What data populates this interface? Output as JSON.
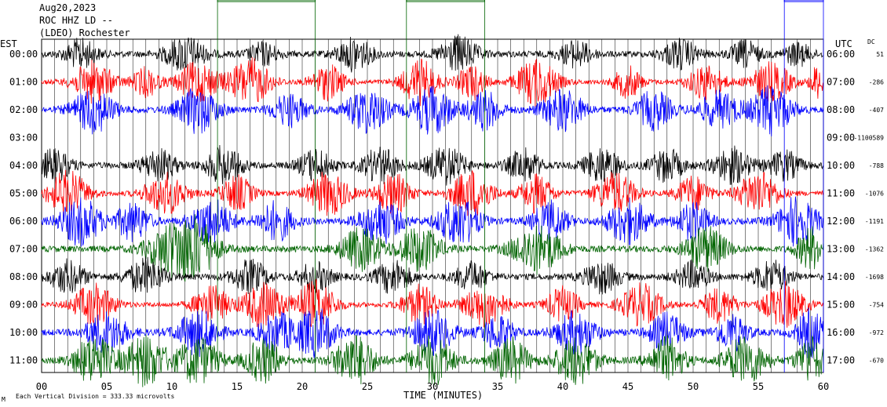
{
  "header": {
    "date": "Aug20,2023",
    "station": "ROC HHZ LD --",
    "network": "(LDEO) Rochester"
  },
  "chart_data": {
    "type": "line",
    "subtype": "helicorder",
    "xlabel": "TIME (MINUTES)",
    "x_ticks": [
      "00",
      "05",
      "10",
      "15",
      "20",
      "25",
      "30",
      "35",
      "40",
      "45",
      "50",
      "55",
      "60"
    ],
    "xlim": [
      0,
      60
    ],
    "left_axis_title": "EST",
    "right_axis_title": "UTC",
    "dc_label": "DC",
    "scale_note": "Each Vertical Division = 333.33 microvolts",
    "corner_mark": "M",
    "grid": true,
    "trace_colors": [
      "#000000",
      "#ff0000",
      "#0000ff",
      "#006400"
    ],
    "rows": [
      {
        "est": "00:00",
        "utc": "06:00",
        "dc": "51"
      },
      {
        "est": "01:00",
        "utc": "07:00",
        "dc": "-286"
      },
      {
        "est": "02:00",
        "utc": "08:00",
        "dc": "-407"
      },
      {
        "est": "03:00",
        "utc": "09:00",
        "dc": "-1100589"
      },
      {
        "est": "04:00",
        "utc": "10:00",
        "dc": "-788"
      },
      {
        "est": "05:00",
        "utc": "11:00",
        "dc": "-1076"
      },
      {
        "est": "06:00",
        "utc": "12:00",
        "dc": "-1191"
      },
      {
        "est": "07:00",
        "utc": "13:00",
        "dc": "-1362"
      },
      {
        "est": "08:00",
        "utc": "14:00",
        "dc": "-1698"
      },
      {
        "est": "09:00",
        "utc": "15:00",
        "dc": "-754"
      },
      {
        "est": "10:00",
        "utc": "16:00",
        "dc": "-972"
      },
      {
        "est": "11:00",
        "utc": "17:00",
        "dc": "-670"
      }
    ],
    "series": [
      {
        "row": 0,
        "noise": 4,
        "bursts": [
          [
            3,
            1.2,
            18
          ],
          [
            11,
            1.5,
            22
          ],
          [
            17,
            1.1,
            14
          ],
          [
            24,
            1.3,
            20
          ],
          [
            32,
            1.4,
            22
          ],
          [
            41,
            1.2,
            16
          ],
          [
            49,
            1.3,
            18
          ],
          [
            54,
            1.1,
            16
          ],
          [
            58,
            1.0,
            14
          ]
        ]
      },
      {
        "row": 1,
        "noise": 3,
        "bursts": [
          [
            4,
            1.5,
            26
          ],
          [
            8,
            1.0,
            18
          ],
          [
            12,
            1.5,
            26
          ],
          [
            16,
            1.5,
            30
          ],
          [
            22,
            1.2,
            22
          ],
          [
            29,
            1.3,
            28
          ],
          [
            33,
            1.0,
            22
          ],
          [
            38,
            1.5,
            30
          ],
          [
            45,
            1.0,
            20
          ],
          [
            51,
            1.3,
            22
          ],
          [
            56,
            1.5,
            24
          ],
          [
            59.5,
            0.5,
            20
          ]
        ]
      },
      {
        "row": 2,
        "noise": 4,
        "bursts": [
          [
            4,
            1.5,
            28
          ],
          [
            12,
            1.5,
            28
          ],
          [
            19,
            1.3,
            20
          ],
          [
            25,
            1.5,
            28
          ],
          [
            30,
            1.5,
            30
          ],
          [
            34,
            1.2,
            24
          ],
          [
            40,
            1.5,
            26
          ],
          [
            47,
            1.3,
            24
          ],
          [
            52,
            1.5,
            22
          ],
          [
            56,
            1.5,
            30
          ]
        ]
      },
      {
        "row": 3,
        "noise": 0,
        "bursts": []
      },
      {
        "row": 4,
        "noise": 4,
        "bursts": [
          [
            1,
            1.2,
            20
          ],
          [
            9,
            1.3,
            20
          ],
          [
            14,
            1.3,
            24
          ],
          [
            21,
            1.2,
            20
          ],
          [
            26,
            1.3,
            22
          ],
          [
            31,
            1.4,
            24
          ],
          [
            37,
            1.2,
            20
          ],
          [
            43,
            1.3,
            22
          ],
          [
            48,
            1.2,
            20
          ],
          [
            53,
            1.4,
            22
          ],
          [
            57,
            1.2,
            18
          ]
        ]
      },
      {
        "row": 5,
        "noise": 3,
        "bursts": [
          [
            2,
            1.5,
            28
          ],
          [
            9.5,
            1.5,
            26
          ],
          [
            15,
            1.2,
            22
          ],
          [
            22,
            1.5,
            28
          ],
          [
            27,
            1.3,
            26
          ],
          [
            33,
            1.5,
            30
          ],
          [
            38,
            1.2,
            24
          ],
          [
            44,
            1.5,
            26
          ],
          [
            50,
            1.2,
            22
          ],
          [
            55,
            1.5,
            28
          ]
        ]
      },
      {
        "row": 6,
        "noise": 4,
        "bursts": [
          [
            3,
            1.5,
            30
          ],
          [
            7,
            1.2,
            24
          ],
          [
            13,
            1.5,
            28
          ],
          [
            18,
            1.3,
            24
          ],
          [
            26,
            1.5,
            28
          ],
          [
            32,
            1.5,
            30
          ],
          [
            39,
            1.3,
            24
          ],
          [
            45,
            1.5,
            28
          ],
          [
            50,
            1.2,
            24
          ],
          [
            58,
            1.5,
            30
          ]
        ]
      },
      {
        "row": 7,
        "noise": 4,
        "bursts": [
          [
            10,
            1.8,
            32
          ],
          [
            12,
            1.5,
            30
          ],
          [
            24.5,
            1.5,
            26
          ],
          [
            29,
            1.5,
            28
          ],
          [
            38,
            1.8,
            30
          ],
          [
            51,
            1.5,
            28
          ],
          [
            59,
            1.0,
            26
          ]
        ]
      },
      {
        "row": 8,
        "noise": 4,
        "bursts": [
          [
            2,
            1.3,
            20
          ],
          [
            8,
            1.4,
            22
          ],
          [
            16,
            1.3,
            20
          ],
          [
            21,
            1.2,
            18
          ],
          [
            27,
            1.3,
            20
          ],
          [
            33,
            1.2,
            18
          ],
          [
            43,
            1.3,
            20
          ],
          [
            50,
            1.2,
            18
          ],
          [
            56,
            1.3,
            20
          ]
        ]
      },
      {
        "row": 9,
        "noise": 3,
        "bursts": [
          [
            4,
            1.5,
            26
          ],
          [
            13,
            1.3,
            24
          ],
          [
            17,
            1.5,
            28
          ],
          [
            21,
            1.5,
            30
          ],
          [
            29,
            1.3,
            24
          ],
          [
            34,
            1.5,
            28
          ],
          [
            40,
            1.2,
            22
          ],
          [
            46,
            1.5,
            26
          ],
          [
            52,
            1.2,
            22
          ],
          [
            57,
            1.5,
            28
          ]
        ]
      },
      {
        "row": 10,
        "noise": 4,
        "bursts": [
          [
            5,
            1.5,
            26
          ],
          [
            12,
            1.5,
            28
          ],
          [
            18,
            1.3,
            24
          ],
          [
            21,
            1.5,
            30
          ],
          [
            30,
            1.5,
            28
          ],
          [
            35,
            1.2,
            22
          ],
          [
            41,
            1.5,
            26
          ],
          [
            48,
            1.3,
            24
          ],
          [
            53,
            1.2,
            22
          ],
          [
            59,
            1.0,
            30
          ]
        ]
      },
      {
        "row": 11,
        "noise": 4,
        "bursts": [
          [
            4,
            1.5,
            30
          ],
          [
            8,
            1.5,
            32
          ],
          [
            12,
            1.5,
            30
          ],
          [
            17,
            1.3,
            28
          ],
          [
            24,
            1.5,
            32
          ],
          [
            30,
            1.5,
            30
          ],
          [
            36,
            1.3,
            28
          ],
          [
            41,
            1.5,
            30
          ],
          [
            48,
            1.3,
            28
          ],
          [
            54,
            1.5,
            30
          ],
          [
            59,
            1.0,
            30
          ]
        ]
      }
    ],
    "offscale": [
      {
        "row": 0,
        "start": 13.5,
        "end": 21
      },
      {
        "row": 0,
        "start": 28,
        "end": 34
      },
      {
        "row": 0,
        "start": 57,
        "end": 60
      }
    ]
  }
}
